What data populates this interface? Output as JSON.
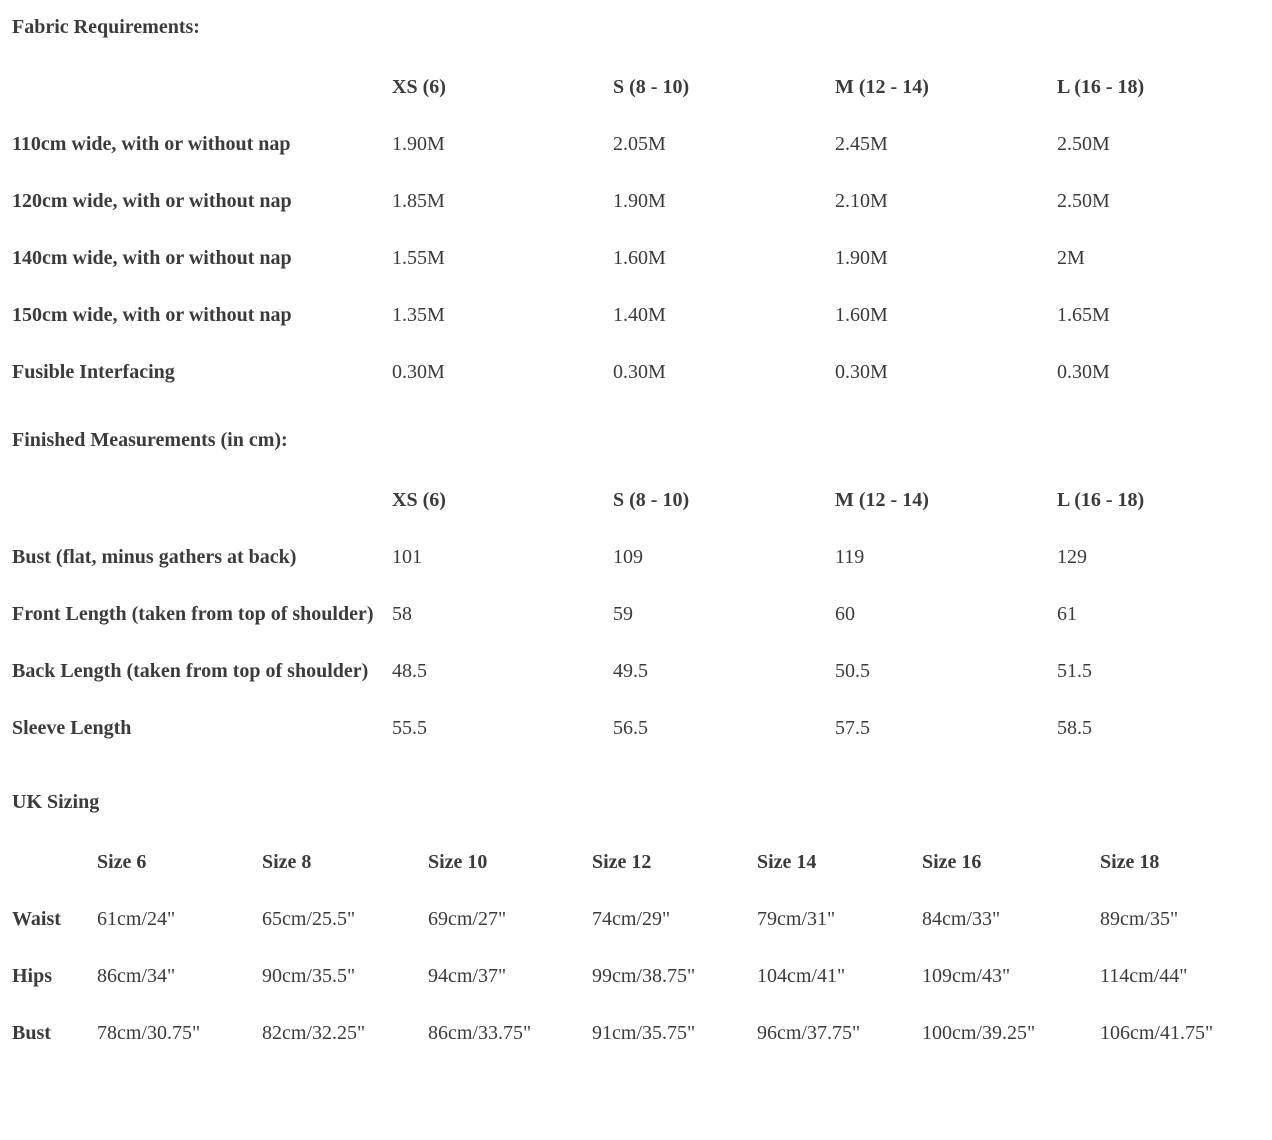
{
  "page": {
    "text_color": "#3b3b3b",
    "background_color": "#ffffff"
  },
  "fabric_requirements": {
    "heading": "Fabric Requirements:",
    "columns": [
      "XS (6)",
      "S (8 - 10)",
      "M (12 - 14)",
      "L (16 - 18)"
    ],
    "rows": [
      {
        "label": "110cm wide, with or without nap",
        "values": [
          "1.90M",
          "2.05M",
          "2.45M",
          "2.50M"
        ]
      },
      {
        "label": "120cm wide, with or without nap",
        "values": [
          "1.85M",
          "1.90M",
          "2.10M",
          "2.50M"
        ]
      },
      {
        "label": "140cm wide, with or without nap",
        "values": [
          "1.55M",
          "1.60M",
          "1.90M",
          "2M"
        ]
      },
      {
        "label": "150cm wide, with or without nap",
        "values": [
          "1.35M",
          "1.40M",
          "1.60M",
          "1.65M"
        ]
      },
      {
        "label": "Fusible Interfacing",
        "values": [
          "0.30M",
          "0.30M",
          "0.30M",
          "0.30M"
        ]
      }
    ]
  },
  "finished_measurements": {
    "heading": "Finished Measurements (in cm):",
    "columns": [
      "XS (6)",
      "S (8 - 10)",
      "M (12 - 14)",
      "L (16 - 18)"
    ],
    "rows": [
      {
        "label": "Bust (flat, minus gathers at back)",
        "values": [
          "101",
          "109",
          "119",
          "129"
        ]
      },
      {
        "label": "Front Length (taken from top of shoulder)",
        "values": [
          "58",
          "59",
          "60",
          "61"
        ]
      },
      {
        "label": "Back Length (taken from top of shoulder)",
        "values": [
          "48.5",
          "49.5",
          "50.5",
          "51.5"
        ]
      },
      {
        "label": "Sleeve Length",
        "values": [
          "55.5",
          "56.5",
          "57.5",
          "58.5"
        ]
      }
    ]
  },
  "uk_sizing": {
    "heading": "UK Sizing",
    "columns": [
      "Size 6",
      "Size 8",
      "Size 10",
      "Size 12",
      "Size 14",
      "Size 16",
      "Size 18"
    ],
    "rows": [
      {
        "label": "Waist",
        "values": [
          "61cm/24\"",
          "65cm/25.5\"",
          "69cm/27\"",
          "74cm/29\"",
          "79cm/31\"",
          "84cm/33\"",
          "89cm/35\""
        ]
      },
      {
        "label": "Hips",
        "values": [
          "86cm/34\"",
          "90cm/35.5\"",
          "94cm/37\"",
          "99cm/38.75\"",
          "104cm/41\"",
          "109cm/43\"",
          "114cm/44\""
        ]
      },
      {
        "label": "Bust",
        "values": [
          "78cm/30.75\"",
          "82cm/32.25\"",
          "86cm/33.75\"",
          "91cm/35.75\"",
          "96cm/37.75\"",
          "100cm/39.25\"",
          "106cm/41.75\""
        ]
      }
    ]
  }
}
